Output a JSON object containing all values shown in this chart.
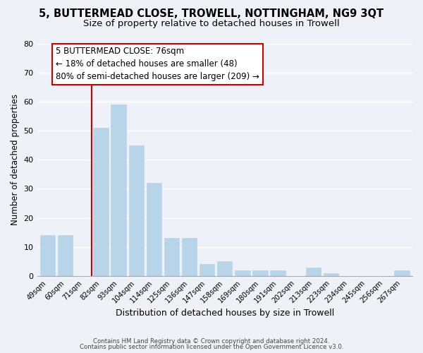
{
  "title": "5, BUTTERMEAD CLOSE, TROWELL, NOTTINGHAM, NG9 3QT",
  "subtitle": "Size of property relative to detached houses in Trowell",
  "xlabel": "Distribution of detached houses by size in Trowell",
  "ylabel": "Number of detached properties",
  "bar_labels": [
    "49sqm",
    "60sqm",
    "71sqm",
    "82sqm",
    "93sqm",
    "104sqm",
    "114sqm",
    "125sqm",
    "136sqm",
    "147sqm",
    "158sqm",
    "169sqm",
    "180sqm",
    "191sqm",
    "202sqm",
    "213sqm",
    "223sqm",
    "234sqm",
    "245sqm",
    "256sqm",
    "267sqm"
  ],
  "bar_values": [
    14,
    14,
    0,
    51,
    59,
    45,
    32,
    13,
    13,
    4,
    5,
    2,
    2,
    2,
    0,
    3,
    1,
    0,
    0,
    0,
    2
  ],
  "bar_color": "#b8d4e8",
  "bar_edge_color": "#b8d4e8",
  "vline_color": "#cc0000",
  "ylim": [
    0,
    80
  ],
  "yticks": [
    0,
    10,
    20,
    30,
    40,
    50,
    60,
    70,
    80
  ],
  "annotation_title": "5 BUTTERMEAD CLOSE: 76sqm",
  "annotation_line1": "← 18% of detached houses are smaller (48)",
  "annotation_line2": "80% of semi-detached houses are larger (209) →",
  "annotation_box_color": "#ffffff",
  "annotation_box_edgecolor": "#cc0000",
  "footer1": "Contains HM Land Registry data © Crown copyright and database right 2024.",
  "footer2": "Contains public sector information licensed under the Open Government Licence v3.0.",
  "background_color": "#eef2f8",
  "grid_color": "#ffffff",
  "title_fontsize": 10.5,
  "subtitle_fontsize": 9.5,
  "xlabel_fontsize": 9,
  "ylabel_fontsize": 8.5
}
